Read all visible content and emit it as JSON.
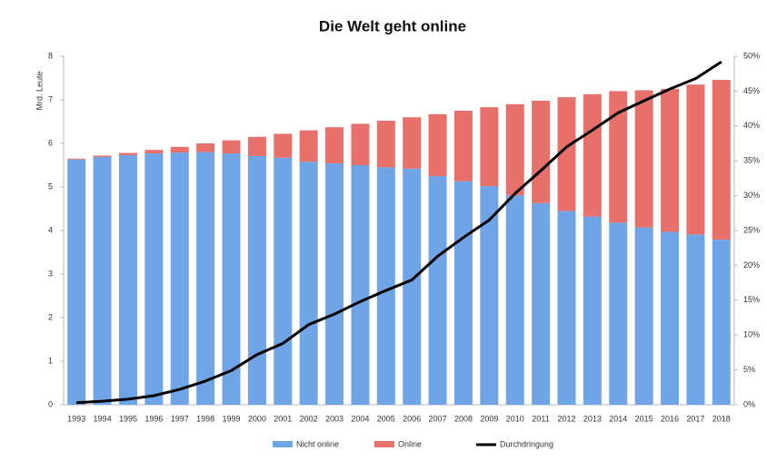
{
  "chart_data": {
    "type": "bar_line",
    "title": "Die Welt geht online",
    "y_label": "Mrd. Leute",
    "categories": [
      "1993",
      "1994",
      "1995",
      "1996",
      "1997",
      "1998",
      "1999",
      "2000",
      "2001",
      "2002",
      "2003",
      "2004",
      "2005",
      "2006",
      "2007",
      "2008",
      "2009",
      "2010",
      "2011",
      "2012",
      "2013",
      "2014",
      "2015",
      "2016",
      "2017",
      "2018"
    ],
    "series": [
      {
        "name": "Nicht online",
        "color": "#6fa5e6",
        "type": "bar",
        "values": [
          5.63,
          5.69,
          5.73,
          5.77,
          5.79,
          5.8,
          5.77,
          5.71,
          5.67,
          5.58,
          5.54,
          5.5,
          5.45,
          5.42,
          5.25,
          5.13,
          5.02,
          4.81,
          4.63,
          4.45,
          4.32,
          4.18,
          4.07,
          3.97,
          3.91,
          3.79
        ]
      },
      {
        "name": "Online",
        "color": "#e8706b",
        "type": "bar",
        "values": [
          0.02,
          0.03,
          0.05,
          0.08,
          0.13,
          0.2,
          0.3,
          0.44,
          0.55,
          0.72,
          0.83,
          0.95,
          1.07,
          1.18,
          1.42,
          1.62,
          1.81,
          2.09,
          2.35,
          2.61,
          2.81,
          3.02,
          3.15,
          3.28,
          3.44,
          3.67
        ]
      },
      {
        "name": "Durchdringung",
        "color": "#000000",
        "type": "line",
        "axis": "y2",
        "values": [
          0.3,
          0.5,
          0.8,
          1.3,
          2.2,
          3.4,
          4.9,
          7.2,
          8.8,
          11.5,
          13.0,
          14.8,
          16.4,
          17.9,
          21.3,
          24.0,
          26.5,
          30.3,
          33.6,
          37.0,
          39.4,
          41.9,
          43.6,
          45.3,
          46.8,
          49.2
        ]
      }
    ],
    "ylim": [
      0,
      8
    ],
    "yticks": [
      0,
      1,
      2,
      3,
      4,
      5,
      6,
      7,
      8
    ],
    "y2lim": [
      0,
      50
    ],
    "y2ticks": [
      {
        "value": 0,
        "label": "0%"
      },
      {
        "value": 5,
        "label": "5%"
      },
      {
        "value": 10,
        "label": "10%"
      },
      {
        "value": 15,
        "label": "15%"
      },
      {
        "value": 20,
        "label": "20%"
      },
      {
        "value": 25,
        "label": "25%"
      },
      {
        "value": 30,
        "label": "30%"
      },
      {
        "value": 35,
        "label": "35%"
      },
      {
        "value": 40,
        "label": "40%"
      },
      {
        "value": 45,
        "label": "45%"
      },
      {
        "value": 50,
        "label": "50%"
      }
    ],
    "legend": "bottom"
  }
}
